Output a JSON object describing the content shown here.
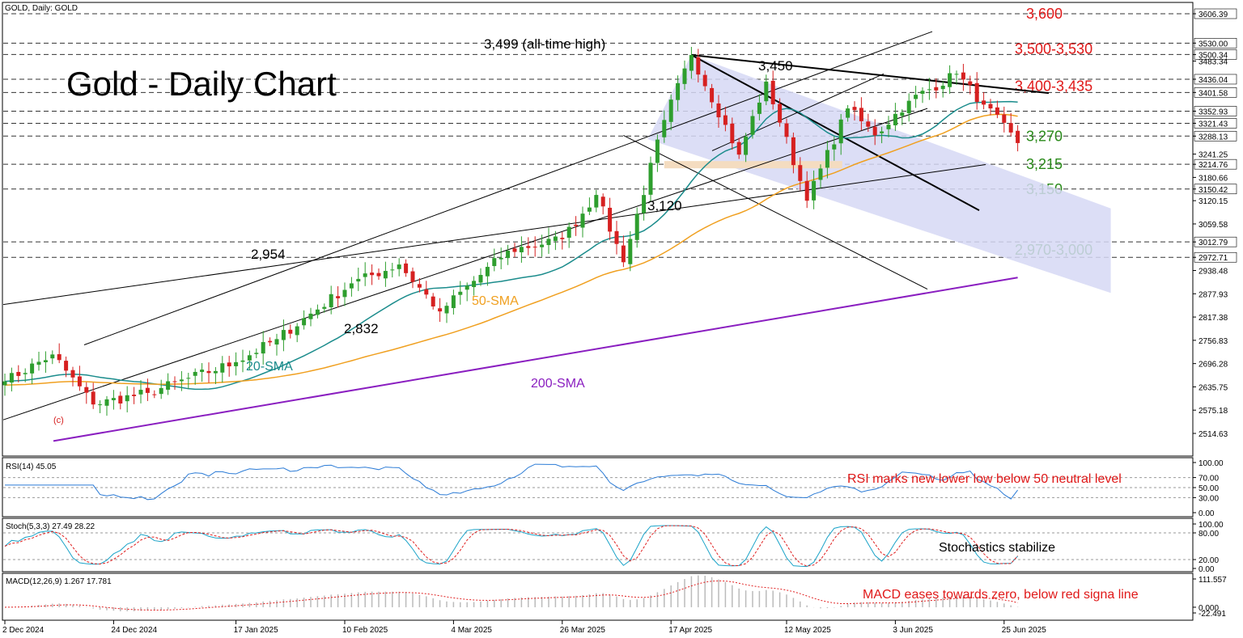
{
  "header": {
    "symbol_line": "GOLD, Daily:  GOLD"
  },
  "main_title": "Gold - Daily Chart",
  "colors": {
    "bull": "#2e9e2e",
    "bear": "#d62020",
    "sma20": "#1b8c8c",
    "sma50": "#f0a020",
    "sma200": "#8a1ec0",
    "red_label": "#e01818",
    "green_label": "#2a8a1a",
    "rsi": "#2b7bd6",
    "stoch_main": "#1aa3c8",
    "stoch_signal": "#e02020",
    "channel_fill": "#d6d8f4",
    "zone_fill": "#f4dcc0"
  },
  "price_axis": {
    "ticks": [
      "3606.39",
      "3530.00",
      "3500.34",
      "3483.34",
      "3436.04",
      "3401.58",
      "3352.93",
      "3321.43",
      "3288.13",
      "3241.25",
      "3214.76",
      "3180.66",
      "3150.42",
      "3120.15",
      "3059.58",
      "3012.79",
      "2972.71",
      "2938.48",
      "2877.93",
      "2817.38",
      "2756.83",
      "2696.28",
      "2635.75",
      "2575.18",
      "2514.63"
    ],
    "highlighted": [
      "3606.39",
      "3530.00",
      "3500.34",
      "3436.04",
      "3401.58",
      "3352.93",
      "3321.43",
      "3288.13",
      "3214.76",
      "3150.42",
      "3012.79",
      "2972.71"
    ]
  },
  "date_axis": [
    "2 Dec 2024",
    "24 Dec 2024",
    "17 Jan 2025",
    "10 Feb 2025",
    "4 Mar 2025",
    "26 Mar 2025",
    "17 Apr 2025",
    "12 May 2025",
    "3 Jun 2025",
    "25 Jun 2025"
  ],
  "levels": [
    {
      "label": "3,600",
      "price": 3606.39,
      "tone": "red"
    },
    {
      "label": "3,500-3,530",
      "price": 3515,
      "tone": "red"
    },
    {
      "label": "3,400-3,435",
      "price": 3418,
      "tone": "red"
    },
    {
      "label": "3,270",
      "price": 3288.13,
      "tone": "green"
    },
    {
      "label": "3,215",
      "price": 3214.76,
      "tone": "green"
    },
    {
      "label": "3,150",
      "price": 3150.42,
      "tone": "green"
    },
    {
      "label": "2,970-3,000",
      "price": 2992,
      "tone": "green"
    }
  ],
  "annotations": {
    "ath": "3,499 (all-time high)",
    "p3450": "3,450",
    "p3120": "3,120",
    "p2954": "2,954",
    "p2832": "2,832",
    "c": "(c)",
    "sma20": "20-SMA",
    "sma50": "50-SMA",
    "sma200": "200-SMA"
  },
  "rsi_panel": {
    "label": "RSI(14) 45.05",
    "comment": "RSI marks new lower low below 50 neutral level",
    "ticks": [
      "100.00",
      "70.00",
      "50.00",
      "30.00",
      "0.00"
    ]
  },
  "stoch_panel": {
    "label": "Stoch(5,3,3) 27.49 28.22",
    "comment": "Stochastics stabilize",
    "ticks": [
      "100.00",
      "80.00",
      "20.00",
      "0.00"
    ]
  },
  "macd_panel": {
    "label": "MACD(12,26,9) 1.267 17.781",
    "comment": "MACD eases towards zero, below red signa line",
    "ticks": [
      "111.557",
      "0.000",
      "-22.491"
    ]
  },
  "chart_data": {
    "type": "candlestick",
    "title": "Gold - Daily Chart",
    "symbol": "GOLD, Daily:  GOLD",
    "period": "2 Dec 2024 – 27 Jun 2025",
    "anchors": [
      {
        "date": "2 Dec 2024",
        "close": 2650
      },
      {
        "date": "11 Dec 2024",
        "close": 2720
      },
      {
        "date": "19 Dec 2024",
        "close": 2590
      },
      {
        "date": "31 Dec 2024",
        "close": 2620
      },
      {
        "date": "17 Jan 2025",
        "close": 2700
      },
      {
        "date": "27 Jan 2025",
        "close": 2760
      },
      {
        "date": "11 Feb 2025",
        "close": 2905
      },
      {
        "date": "20 Feb 2025",
        "close": 2954
      },
      {
        "date": "28 Feb 2025",
        "close": 2832
      },
      {
        "date": "14 Mar 2025",
        "close": 2990
      },
      {
        "date": "26 Mar 2025",
        "close": 3020
      },
      {
        "date": "2 Apr 2025",
        "close": 3135
      },
      {
        "date": "8 Apr 2025",
        "close": 2960
      },
      {
        "date": "16 Apr 2025",
        "close": 3330
      },
      {
        "date": "22 Apr 2025",
        "close": 3499
      },
      {
        "date": "1 May 2025",
        "close": 3240
      },
      {
        "date": "7 May 2025",
        "close": 3430
      },
      {
        "date": "15 May 2025",
        "close": 3120
      },
      {
        "date": "23 May 2025",
        "close": 3360
      },
      {
        "date": "29 May 2025",
        "close": 3290
      },
      {
        "date": "5 Jun 2025",
        "close": 3380
      },
      {
        "date": "16 Jun 2025",
        "close": 3450
      },
      {
        "date": "20 Jun 2025",
        "close": 3370
      },
      {
        "date": "27 Jun 2025",
        "close": 3270
      }
    ],
    "sma": {
      "20": {
        "last": 3350
      },
      "50": {
        "last": 3320
      },
      "200": {
        "last": 2920
      }
    },
    "rsi_last": 45.05,
    "stoch": {
      "k": 27.49,
      "d": 28.22
    },
    "macd": {
      "macd": 1.267,
      "signal": 17.781
    }
  }
}
